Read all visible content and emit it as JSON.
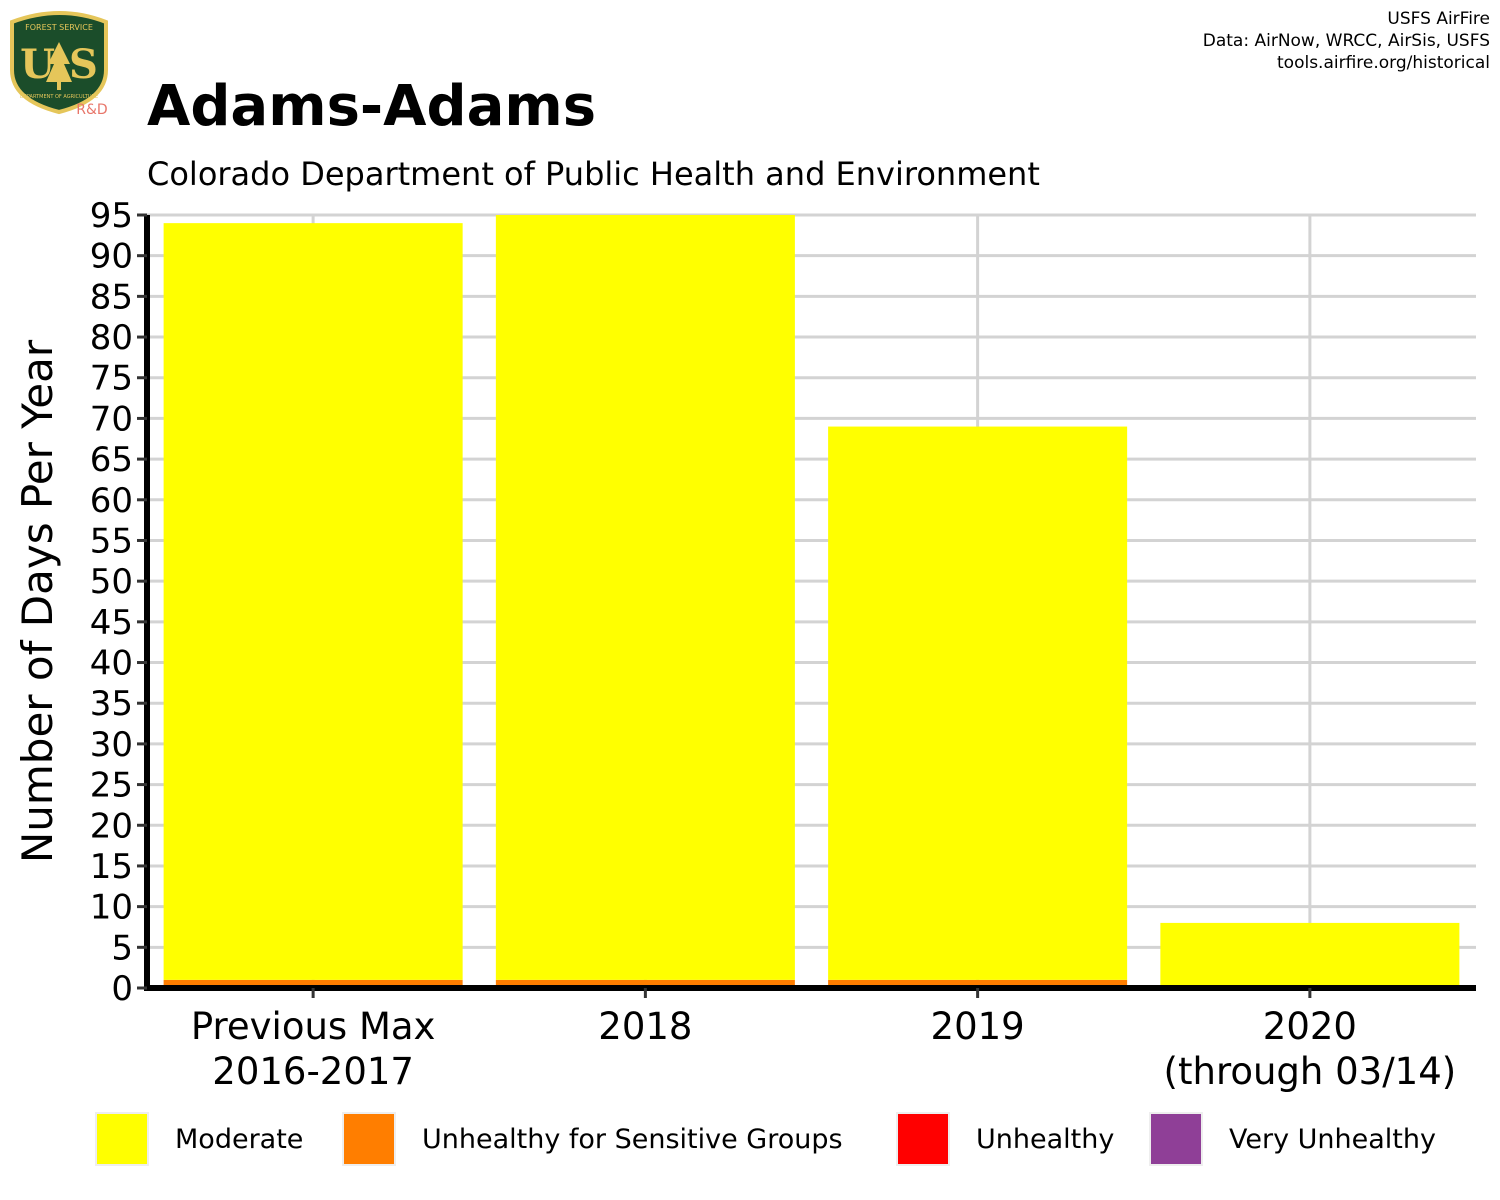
{
  "header": {
    "credit_lines": [
      "USFS AirFire",
      "Data: AirNow, WRCC, AirSis, USFS",
      "tools.airfire.org/historical"
    ],
    "logo": {
      "top_text": "FOREST SERVICE",
      "letters": "U S",
      "bottom_text": "DEPARTMENT OF AGRICULTURE",
      "badge": "R&D",
      "badge_color": "#e8766a",
      "shield_color": "#1b4d2a",
      "trim_color": "#e5c65a"
    }
  },
  "chart_data": {
    "type": "bar",
    "title": "Adams-Adams",
    "subtitle": "Colorado Department of Public Health and Environment",
    "ylabel": "Number of Days Per Year",
    "xlabel": "",
    "ylim": [
      0,
      95
    ],
    "yticks": [
      0,
      5,
      10,
      15,
      20,
      25,
      30,
      35,
      40,
      45,
      50,
      55,
      60,
      65,
      70,
      75,
      80,
      85,
      90,
      95
    ],
    "grid": true,
    "stacked": true,
    "categories": [
      [
        "Previous Max",
        "2016-2017"
      ],
      [
        "2018"
      ],
      [
        "2019"
      ],
      [
        "2020",
        "(through 03/14)"
      ]
    ],
    "series": [
      {
        "name": "Moderate",
        "color": "#ffff00",
        "values": [
          93,
          94,
          68,
          8
        ]
      },
      {
        "name": "Unhealthy for Sensitive Groups",
        "color": "#ff7e00",
        "values": [
          1,
          1,
          1,
          0
        ]
      },
      {
        "name": "Unhealthy",
        "color": "#ff0000",
        "values": [
          0,
          0,
          0,
          0
        ]
      },
      {
        "name": "Very Unhealthy",
        "color": "#8f3f97",
        "values": [
          0,
          0,
          0,
          0
        ]
      }
    ],
    "legend_position": "bottom"
  }
}
